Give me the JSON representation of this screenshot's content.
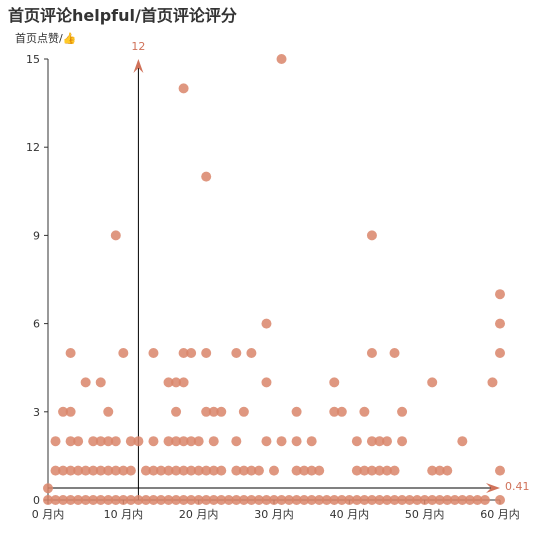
{
  "chart_data": {
    "type": "scatter",
    "title": "首页评论helpful/首页评论评分",
    "ylabel": "首页点赞/👍",
    "xlabel": "",
    "x_tick_labels": [
      "0 月内",
      "10 月内",
      "20 月内",
      "30 月内",
      "40 月内",
      "50 月内",
      "60 月内"
    ],
    "x_ticks": [
      0,
      10,
      20,
      30,
      40,
      50,
      60
    ],
    "y_ticks": [
      0,
      3,
      6,
      9,
      12,
      15
    ],
    "xlim": [
      0,
      60
    ],
    "ylim": [
      0,
      15
    ],
    "grid": false,
    "point_color": "#d9856a",
    "axis_color": "#333333",
    "reference_lines": {
      "x": {
        "value": 12,
        "label": "12"
      },
      "y": {
        "value": 0.41,
        "label": "0.41"
      },
      "color": "#d0725a"
    },
    "series": [
      {
        "points": [
          [
            0,
            0.4
          ],
          [
            0,
            0
          ],
          [
            1,
            0
          ],
          [
            2,
            0
          ],
          [
            3,
            0
          ],
          [
            4,
            0
          ],
          [
            5,
            0
          ],
          [
            6,
            0
          ],
          [
            7,
            0
          ],
          [
            8,
            0
          ],
          [
            9,
            0
          ],
          [
            10,
            0
          ],
          [
            11,
            0
          ],
          [
            12,
            0
          ],
          [
            13,
            0
          ],
          [
            14,
            0
          ],
          [
            15,
            0
          ],
          [
            16,
            0
          ],
          [
            17,
            0
          ],
          [
            18,
            0
          ],
          [
            19,
            0
          ],
          [
            20,
            0
          ],
          [
            21,
            0
          ],
          [
            22,
            0
          ],
          [
            23,
            0
          ],
          [
            24,
            0
          ],
          [
            25,
            0
          ],
          [
            26,
            0
          ],
          [
            27,
            0
          ],
          [
            28,
            0
          ],
          [
            29,
            0
          ],
          [
            30,
            0
          ],
          [
            31,
            0
          ],
          [
            32,
            0
          ],
          [
            33,
            0
          ],
          [
            34,
            0
          ],
          [
            35,
            0
          ],
          [
            36,
            0
          ],
          [
            37,
            0
          ],
          [
            38,
            0
          ],
          [
            39,
            0
          ],
          [
            40,
            0
          ],
          [
            41,
            0
          ],
          [
            42,
            0
          ],
          [
            43,
            0
          ],
          [
            44,
            0
          ],
          [
            45,
            0
          ],
          [
            46,
            0
          ],
          [
            47,
            0
          ],
          [
            48,
            0
          ],
          [
            49,
            0
          ],
          [
            50,
            0
          ],
          [
            51,
            0
          ],
          [
            52,
            0
          ],
          [
            53,
            0
          ],
          [
            54,
            0
          ],
          [
            55,
            0
          ],
          [
            56,
            0
          ],
          [
            57,
            0
          ],
          [
            58,
            0
          ],
          [
            60,
            0
          ],
          [
            1,
            1
          ],
          [
            2,
            1
          ],
          [
            3,
            1
          ],
          [
            4,
            1
          ],
          [
            5,
            1
          ],
          [
            6,
            1
          ],
          [
            7,
            1
          ],
          [
            8,
            1
          ],
          [
            9,
            1
          ],
          [
            10,
            1
          ],
          [
            11,
            1
          ],
          [
            13,
            1
          ],
          [
            14,
            1
          ],
          [
            15,
            1
          ],
          [
            16,
            1
          ],
          [
            17,
            1
          ],
          [
            18,
            1
          ],
          [
            19,
            1
          ],
          [
            20,
            1
          ],
          [
            21,
            1
          ],
          [
            22,
            1
          ],
          [
            23,
            1
          ],
          [
            25,
            1
          ],
          [
            26,
            1
          ],
          [
            27,
            1
          ],
          [
            28,
            1
          ],
          [
            30,
            1
          ],
          [
            33,
            1
          ],
          [
            34,
            1
          ],
          [
            35,
            1
          ],
          [
            36,
            1
          ],
          [
            41,
            1
          ],
          [
            42,
            1
          ],
          [
            43,
            1
          ],
          [
            44,
            1
          ],
          [
            45,
            1
          ],
          [
            46,
            1
          ],
          [
            51,
            1
          ],
          [
            52,
            1
          ],
          [
            53,
            1
          ],
          [
            60,
            1
          ],
          [
            1,
            2
          ],
          [
            3,
            2
          ],
          [
            4,
            2
          ],
          [
            6,
            2
          ],
          [
            7,
            2
          ],
          [
            8,
            2
          ],
          [
            9,
            2
          ],
          [
            11,
            2
          ],
          [
            12,
            2
          ],
          [
            14,
            2
          ],
          [
            16,
            2
          ],
          [
            17,
            2
          ],
          [
            18,
            2
          ],
          [
            19,
            2
          ],
          [
            20,
            2
          ],
          [
            22,
            2
          ],
          [
            25,
            2
          ],
          [
            29,
            2
          ],
          [
            31,
            2
          ],
          [
            33,
            2
          ],
          [
            35,
            2
          ],
          [
            41,
            2
          ],
          [
            43,
            2
          ],
          [
            44,
            2
          ],
          [
            45,
            2
          ],
          [
            47,
            2
          ],
          [
            55,
            2
          ],
          [
            2,
            3
          ],
          [
            3,
            3
          ],
          [
            8,
            3
          ],
          [
            17,
            3
          ],
          [
            21,
            3
          ],
          [
            22,
            3
          ],
          [
            23,
            3
          ],
          [
            26,
            3
          ],
          [
            33,
            3
          ],
          [
            38,
            3
          ],
          [
            39,
            3
          ],
          [
            42,
            3
          ],
          [
            47,
            3
          ],
          [
            5,
            4
          ],
          [
            7,
            4
          ],
          [
            16,
            4
          ],
          [
            17,
            4
          ],
          [
            18,
            4
          ],
          [
            29,
            4
          ],
          [
            38,
            4
          ],
          [
            51,
            4
          ],
          [
            59,
            4
          ],
          [
            3,
            5
          ],
          [
            10,
            5
          ],
          [
            14,
            5
          ],
          [
            18,
            5
          ],
          [
            19,
            5
          ],
          [
            21,
            5
          ],
          [
            25,
            5
          ],
          [
            27,
            5
          ],
          [
            43,
            5
          ],
          [
            46,
            5
          ],
          [
            60,
            5
          ],
          [
            29,
            6
          ],
          [
            60,
            6
          ],
          [
            60,
            7
          ],
          [
            9,
            9
          ],
          [
            43,
            9
          ],
          [
            21,
            11
          ],
          [
            18,
            14
          ],
          [
            31,
            15
          ]
        ]
      }
    ]
  }
}
